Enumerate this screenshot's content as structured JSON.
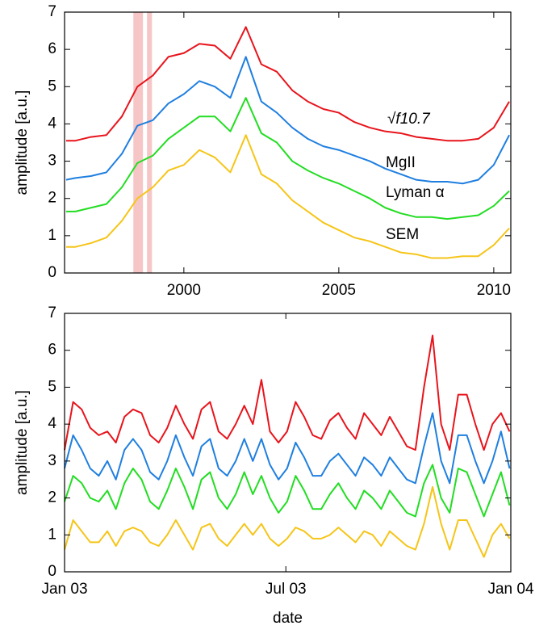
{
  "chart_data": [
    {
      "type": "line",
      "ylabel": "amplitude [a.u.]",
      "xlim": [
        1996.15,
        2010.55
      ],
      "xticks": [
        2000,
        2005,
        2010
      ],
      "ylim": [
        0,
        7
      ],
      "yticks": [
        0,
        1,
        2,
        3,
        4,
        5,
        6,
        7
      ],
      "shaded_spans": [
        [
          1998.37,
          1998.68
        ],
        [
          1998.81,
          1998.97
        ]
      ],
      "shade_color": "#f6c6c6",
      "x": [
        1996.2,
        1996.5,
        1997,
        1997.5,
        1998,
        1998.5,
        1999,
        1999.5,
        2000,
        2000.5,
        2001,
        2001.5,
        2002,
        2002.5,
        2003,
        2003.5,
        2004,
        2004.5,
        2005,
        2005.5,
        2006,
        2006.5,
        2007,
        2007.5,
        2008,
        2008.5,
        2009,
        2009.5,
        2010,
        2010.5
      ],
      "series": [
        {
          "name": "√f10.7",
          "color": "#e8141c",
          "values": [
            3.55,
            3.55,
            3.65,
            3.7,
            4.2,
            5.0,
            5.3,
            5.8,
            5.9,
            6.15,
            6.1,
            5.75,
            6.6,
            5.6,
            5.4,
            4.9,
            4.6,
            4.4,
            4.3,
            4.05,
            3.9,
            3.8,
            3.75,
            3.65,
            3.6,
            3.55,
            3.55,
            3.6,
            3.9,
            4.6
          ]
        },
        {
          "name": "MgII",
          "color": "#1f7fe0",
          "values": [
            2.5,
            2.55,
            2.6,
            2.7,
            3.2,
            3.95,
            4.1,
            4.55,
            4.8,
            5.15,
            5.0,
            4.7,
            5.8,
            4.6,
            4.3,
            3.9,
            3.6,
            3.4,
            3.3,
            3.15,
            3.0,
            2.8,
            2.65,
            2.5,
            2.45,
            2.45,
            2.4,
            2.5,
            2.9,
            3.7
          ]
        },
        {
          "name": "Lyman α",
          "color": "#22dd22",
          "values": [
            1.65,
            1.65,
            1.75,
            1.85,
            2.3,
            2.95,
            3.15,
            3.6,
            3.9,
            4.2,
            4.2,
            3.8,
            4.7,
            3.75,
            3.5,
            3.0,
            2.75,
            2.55,
            2.4,
            2.2,
            2.0,
            1.75,
            1.6,
            1.5,
            1.5,
            1.45,
            1.5,
            1.55,
            1.8,
            2.2
          ]
        },
        {
          "name": "SEM",
          "color": "#f5c518",
          "values": [
            0.7,
            0.7,
            0.8,
            0.95,
            1.4,
            2.0,
            2.3,
            2.75,
            2.9,
            3.3,
            3.1,
            2.7,
            3.7,
            2.65,
            2.4,
            1.95,
            1.65,
            1.35,
            1.15,
            0.95,
            0.85,
            0.7,
            0.55,
            0.5,
            0.4,
            0.4,
            0.45,
            0.45,
            0.75,
            1.2
          ]
        }
      ]
    },
    {
      "type": "line",
      "ylabel": "amplitude [a.u.]",
      "xlabel": "date",
      "xlim": [
        0,
        365
      ],
      "xticks": [
        {
          "value": 0,
          "label": "Jan 03"
        },
        {
          "value": 181,
          "label": "Jul 03"
        },
        {
          "value": 365,
          "label": "Jan 04"
        }
      ],
      "ylim": [
        0,
        7
      ],
      "yticks": [
        0,
        1,
        2,
        3,
        4,
        5,
        6,
        7
      ],
      "x": [
        0,
        7,
        14,
        21,
        28,
        35,
        42,
        49,
        56,
        63,
        70,
        77,
        84,
        91,
        98,
        105,
        112,
        119,
        126,
        133,
        140,
        147,
        154,
        161,
        168,
        175,
        182,
        189,
        196,
        203,
        210,
        217,
        224,
        231,
        238,
        245,
        252,
        259,
        266,
        273,
        280,
        287,
        294,
        301,
        308,
        315,
        322,
        329,
        336,
        343,
        350,
        357,
        364
      ],
      "series": [
        {
          "color": "#e8141c",
          "values": [
            3.3,
            4.6,
            4.4,
            3.9,
            3.7,
            3.8,
            3.5,
            4.2,
            4.4,
            4.3,
            3.7,
            3.5,
            3.9,
            4.5,
            4.0,
            3.6,
            4.4,
            4.6,
            3.8,
            3.6,
            4.0,
            4.5,
            4.0,
            5.2,
            3.8,
            3.5,
            3.8,
            4.6,
            4.2,
            3.7,
            3.6,
            4.1,
            4.3,
            3.9,
            3.6,
            4.3,
            4.0,
            3.7,
            4.2,
            3.8,
            3.4,
            3.3,
            5.0,
            6.4,
            4.0,
            3.3,
            4.8,
            4.8,
            4.0,
            3.3,
            4.0,
            4.3,
            3.8
          ]
        },
        {
          "color": "#1f7fe0",
          "values": [
            2.8,
            3.7,
            3.3,
            2.8,
            2.6,
            3.0,
            2.5,
            3.3,
            3.6,
            3.3,
            2.7,
            2.5,
            3.0,
            3.7,
            3.1,
            2.6,
            3.4,
            3.6,
            2.8,
            2.6,
            3.0,
            3.6,
            3.0,
            3.6,
            2.9,
            2.5,
            2.8,
            3.5,
            3.1,
            2.6,
            2.6,
            3.0,
            3.2,
            2.9,
            2.6,
            3.1,
            2.9,
            2.6,
            3.1,
            2.8,
            2.5,
            2.4,
            3.4,
            4.3,
            3.0,
            2.4,
            3.7,
            3.7,
            3.0,
            2.4,
            3.0,
            3.8,
            2.8
          ]
        },
        {
          "color": "#22dd22",
          "values": [
            1.9,
            2.6,
            2.4,
            2.0,
            1.9,
            2.2,
            1.7,
            2.4,
            2.8,
            2.5,
            1.9,
            1.7,
            2.2,
            2.8,
            2.3,
            1.7,
            2.5,
            2.7,
            2.0,
            1.7,
            2.1,
            2.7,
            2.1,
            2.6,
            2.0,
            1.6,
            1.9,
            2.6,
            2.2,
            1.7,
            1.7,
            2.1,
            2.4,
            2.0,
            1.7,
            2.2,
            2.0,
            1.7,
            2.2,
            1.9,
            1.6,
            1.5,
            2.4,
            2.9,
            2.0,
            1.6,
            2.8,
            2.7,
            2.1,
            1.5,
            2.1,
            2.7,
            1.8
          ]
        },
        {
          "color": "#f5c518",
          "values": [
            0.6,
            1.4,
            1.1,
            0.8,
            0.8,
            1.1,
            0.7,
            1.1,
            1.2,
            1.1,
            0.8,
            0.7,
            1.0,
            1.4,
            1.0,
            0.6,
            1.2,
            1.3,
            0.9,
            0.7,
            1.0,
            1.3,
            1.0,
            1.3,
            0.9,
            0.7,
            0.9,
            1.2,
            1.1,
            0.9,
            0.9,
            1.0,
            1.2,
            1.0,
            0.8,
            1.1,
            1.0,
            0.7,
            1.1,
            0.9,
            0.7,
            0.6,
            1.3,
            2.3,
            1.3,
            0.6,
            1.4,
            1.4,
            0.9,
            0.4,
            1.0,
            1.3,
            0.9
          ]
        }
      ]
    }
  ]
}
